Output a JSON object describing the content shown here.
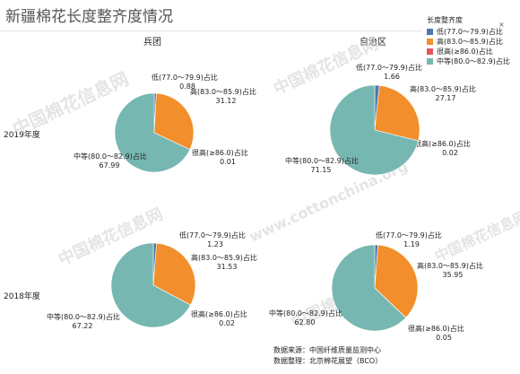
{
  "title": "新疆棉花长度整齐度情况",
  "column_headers": [
    "兵团",
    "自治区"
  ],
  "row_headers": [
    "2019年度",
    "2018年度"
  ],
  "legend": {
    "title": "长度整齐度",
    "close_glyph": "×",
    "items": [
      {
        "label": "低(77.0～79.9)占比",
        "color": "#4e79a7"
      },
      {
        "label": "高(83.0～85.9)占比",
        "color": "#f28e2b"
      },
      {
        "label": "很高(≥86.0)占比",
        "color": "#e15759"
      },
      {
        "label": "中等(80.0～82.9)占比",
        "color": "#76b7b2"
      }
    ]
  },
  "watermark": {
    "line1": "中国棉花信息网",
    "line2": "www.cottonchina.org"
  },
  "source": {
    "line1": "数据来源：中国纤维质量监测中心",
    "line2": "数据整理：北京棉花展望（BCO）"
  },
  "chart_data": [
    {
      "type": "pie",
      "row": "2019年度",
      "column": "兵团",
      "slices": [
        {
          "label": "低(77.0～79.9)占比",
          "value": 0.88,
          "value_text": "0.88"
        },
        {
          "label": "高(83.0～85.9)占比",
          "value": 31.12,
          "value_text": "31.12"
        },
        {
          "label": "很高(≥86.0)占比",
          "value": 0.01,
          "value_text": "0.01"
        },
        {
          "label": "中等(80.0～82.9)占比",
          "value": 67.99,
          "value_text": "67.99"
        }
      ]
    },
    {
      "type": "pie",
      "row": "2019年度",
      "column": "自治区",
      "slices": [
        {
          "label": "低(77.0～79.9)占比",
          "value": 1.66,
          "value_text": "1.66"
        },
        {
          "label": "高(83.0～85.9)占比",
          "value": 27.17,
          "value_text": "27.17"
        },
        {
          "label": "很高(≥86.0)占比",
          "value": 0.02,
          "value_text": "0.02"
        },
        {
          "label": "中等(80.0～82.9)占比",
          "value": 71.15,
          "value_text": "71.15"
        }
      ]
    },
    {
      "type": "pie",
      "row": "2018年度",
      "column": "兵团",
      "slices": [
        {
          "label": "低(77.0～79.9)占比",
          "value": 1.23,
          "value_text": "1.23"
        },
        {
          "label": "高(83.0～85.9)占比",
          "value": 31.53,
          "value_text": "31.53"
        },
        {
          "label": "很高(≥86.0)占比",
          "value": 0.02,
          "value_text": "0.02"
        },
        {
          "label": "中等(80.0～82.9)占比",
          "value": 67.22,
          "value_text": "67.22"
        }
      ]
    },
    {
      "type": "pie",
      "row": "2018年度",
      "column": "自治区",
      "slices": [
        {
          "label": "低(77.0～79.9)占比",
          "value": 1.19,
          "value_text": "1.19"
        },
        {
          "label": "高(83.0～85.9)占比",
          "value": 35.95,
          "value_text": "35.95"
        },
        {
          "label": "很高(≥86.0)占比",
          "value": 0.05,
          "value_text": "0.05"
        },
        {
          "label": "中等(80.0～82.9)占比",
          "value": 62.8,
          "value_text": "62.80"
        }
      ]
    }
  ]
}
